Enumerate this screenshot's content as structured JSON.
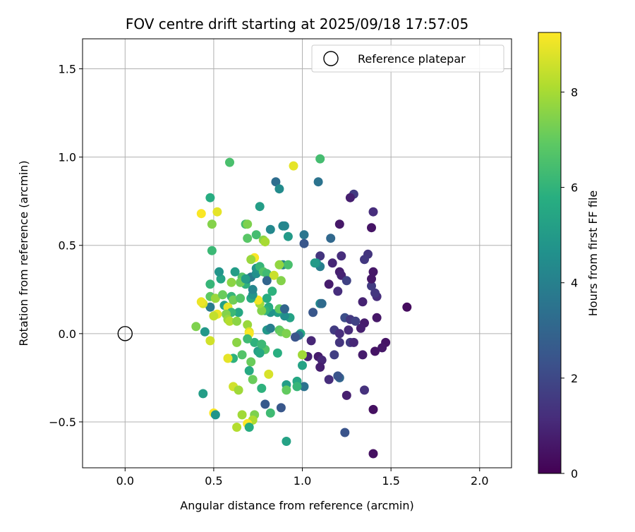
{
  "chart_data": {
    "type": "scatter",
    "title": "FOV centre drift starting at 2025/09/18 17:57:05",
    "xlabel": "Angular distance from reference (arcmin)",
    "ylabel": "Rotation from reference (arcmin)",
    "xlim": [
      -0.24,
      2.18
    ],
    "ylim": [
      -0.76,
      1.67
    ],
    "x_ticks": [
      0.0,
      0.5,
      1.0,
      1.5,
      2.0
    ],
    "x_tick_labels": [
      "0.0",
      "0.5",
      "1.0",
      "1.5",
      "2.0"
    ],
    "y_ticks": [
      -0.5,
      0.0,
      0.5,
      1.0,
      1.5
    ],
    "y_tick_labels": [
      "−0.5",
      "0.0",
      "0.5",
      "1.0",
      "1.5"
    ],
    "grid": true,
    "legend": {
      "position": "top-right",
      "entries": [
        "Reference platepar"
      ]
    },
    "colorbar": {
      "label": "Hours from first FF file",
      "colormap": "viridis",
      "range": [
        0,
        9.25
      ],
      "ticks": [
        0,
        2,
        4,
        6,
        8
      ],
      "tick_labels": [
        "0",
        "2",
        "4",
        "6",
        "8"
      ]
    },
    "reference_point": {
      "label": "Reference platepar",
      "x": 0.0,
      "y": 0.0
    },
    "points": [
      {
        "x": 1.59,
        "y": 0.15,
        "t": 0.3
      },
      {
        "x": 1.4,
        "y": -0.68,
        "t": 0.4
      },
      {
        "x": 1.4,
        "y": -0.43,
        "t": 0.4
      },
      {
        "x": 1.47,
        "y": -0.05,
        "t": 0.5
      },
      {
        "x": 1.45,
        "y": -0.08,
        "t": 0.6
      },
      {
        "x": 1.41,
        "y": -0.1,
        "t": 0.5
      },
      {
        "x": 1.42,
        "y": 0.09,
        "t": 0.6
      },
      {
        "x": 1.35,
        "y": 0.06,
        "t": 0.7
      },
      {
        "x": 1.33,
        "y": 0.03,
        "t": 0.8
      },
      {
        "x": 1.42,
        "y": 0.21,
        "t": 1.2
      },
      {
        "x": 1.41,
        "y": 0.23,
        "t": 1.5
      },
      {
        "x": 1.39,
        "y": 0.27,
        "t": 1.6
      },
      {
        "x": 1.39,
        "y": 0.31,
        "t": 0.6
      },
      {
        "x": 1.4,
        "y": 0.35,
        "t": 0.6
      },
      {
        "x": 1.37,
        "y": 0.45,
        "t": 1.4
      },
      {
        "x": 1.35,
        "y": 0.42,
        "t": 1.5
      },
      {
        "x": 1.39,
        "y": 0.6,
        "t": 0.5
      },
      {
        "x": 1.4,
        "y": 0.69,
        "t": 1.2
      },
      {
        "x": 1.29,
        "y": 0.79,
        "t": 1.6
      },
      {
        "x": 1.27,
        "y": 0.77,
        "t": 0.8
      },
      {
        "x": 1.21,
        "y": 0.62,
        "t": 0.6
      },
      {
        "x": 1.22,
        "y": 0.44,
        "t": 1.2
      },
      {
        "x": 1.17,
        "y": 0.4,
        "t": 1.0
      },
      {
        "x": 1.21,
        "y": 0.35,
        "t": 0.8
      },
      {
        "x": 1.22,
        "y": 0.33,
        "t": 0.9
      },
      {
        "x": 1.1,
        "y": 0.44,
        "t": 1.4
      },
      {
        "x": 1.15,
        "y": 0.28,
        "t": 0.7
      },
      {
        "x": 1.2,
        "y": 0.24,
        "t": 1.2
      },
      {
        "x": 1.25,
        "y": 0.3,
        "t": 1.8
      },
      {
        "x": 1.34,
        "y": 0.18,
        "t": 0.9
      },
      {
        "x": 1.24,
        "y": 0.09,
        "t": 2.2
      },
      {
        "x": 1.27,
        "y": 0.08,
        "t": 1.5
      },
      {
        "x": 1.3,
        "y": 0.07,
        "t": 1.8
      },
      {
        "x": 1.18,
        "y": 0.02,
        "t": 1.6
      },
      {
        "x": 1.21,
        "y": 0.0,
        "t": 1.2
      },
      {
        "x": 1.26,
        "y": 0.02,
        "t": 1.1
      },
      {
        "x": 1.21,
        "y": -0.05,
        "t": 1.4
      },
      {
        "x": 1.27,
        "y": -0.05,
        "t": 1.6
      },
      {
        "x": 1.29,
        "y": -0.05,
        "t": 1.0
      },
      {
        "x": 1.34,
        "y": -0.12,
        "t": 0.7
      },
      {
        "x": 1.18,
        "y": -0.12,
        "t": 1.7
      },
      {
        "x": 1.09,
        "y": -0.13,
        "t": 0.7
      },
      {
        "x": 1.11,
        "y": -0.15,
        "t": 1.0
      },
      {
        "x": 1.03,
        "y": -0.13,
        "t": 0.9
      },
      {
        "x": 1.05,
        "y": -0.04,
        "t": 1.0
      },
      {
        "x": 1.1,
        "y": -0.19,
        "t": 0.8
      },
      {
        "x": 1.15,
        "y": -0.26,
        "t": 1.2
      },
      {
        "x": 1.21,
        "y": -0.25,
        "t": 3.0
      },
      {
        "x": 1.2,
        "y": -0.24,
        "t": 2.4
      },
      {
        "x": 1.25,
        "y": -0.35,
        "t": 0.8
      },
      {
        "x": 1.35,
        "y": -0.32,
        "t": 1.3
      },
      {
        "x": 1.24,
        "y": -0.56,
        "t": 2.4
      },
      {
        "x": 1.01,
        "y": 0.51,
        "t": 2.5
      },
      {
        "x": 1.01,
        "y": 0.56,
        "t": 3.6
      },
      {
        "x": 1.16,
        "y": 0.54,
        "t": 3.1
      },
      {
        "x": 1.09,
        "y": 0.86,
        "t": 3.5
      },
      {
        "x": 1.1,
        "y": 0.38,
        "t": 3.9
      },
      {
        "x": 1.08,
        "y": 0.4,
        "t": 4.6
      },
      {
        "x": 1.07,
        "y": 0.4,
        "t": 5.0
      },
      {
        "x": 1.1,
        "y": 0.17,
        "t": 4.3
      },
      {
        "x": 1.11,
        "y": 0.17,
        "t": 3.2
      },
      {
        "x": 1.06,
        "y": 0.12,
        "t": 2.5
      },
      {
        "x": 0.99,
        "y": 0.0,
        "t": 5.5
      },
      {
        "x": 0.98,
        "y": -0.01,
        "t": 3.5
      },
      {
        "x": 0.96,
        "y": -0.02,
        "t": 2.4
      },
      {
        "x": 1.0,
        "y": -0.18,
        "t": 5.3
      },
      {
        "x": 0.97,
        "y": -0.27,
        "t": 5.5
      },
      {
        "x": 1.01,
        "y": -0.3,
        "t": 3.5
      },
      {
        "x": 0.97,
        "y": -0.3,
        "t": 6.1
      },
      {
        "x": 0.91,
        "y": -0.29,
        "t": 5.1
      },
      {
        "x": 0.91,
        "y": -0.32,
        "t": 7.0
      },
      {
        "x": 0.91,
        "y": -0.61,
        "t": 5.3
      },
      {
        "x": 0.88,
        "y": -0.42,
        "t": 2.5
      },
      {
        "x": 0.79,
        "y": -0.4,
        "t": 2.6
      },
      {
        "x": 0.82,
        "y": -0.45,
        "t": 6.3
      },
      {
        "x": 0.77,
        "y": -0.31,
        "t": 5.9
      },
      {
        "x": 0.81,
        "y": -0.23,
        "t": 8.7
      },
      {
        "x": 0.86,
        "y": -0.11,
        "t": 5.8
      },
      {
        "x": 0.79,
        "y": -0.09,
        "t": 6.7
      },
      {
        "x": 0.75,
        "y": -0.1,
        "t": 5.1
      },
      {
        "x": 0.76,
        "y": -0.11,
        "t": 5.5
      },
      {
        "x": 0.73,
        "y": -0.05,
        "t": 5.9
      },
      {
        "x": 0.77,
        "y": -0.06,
        "t": 6.2
      },
      {
        "x": 0.8,
        "y": 0.02,
        "t": 4.9
      },
      {
        "x": 0.82,
        "y": 0.03,
        "t": 3.9
      },
      {
        "x": 0.87,
        "y": 0.02,
        "t": 6.9
      },
      {
        "x": 0.88,
        "y": 0.01,
        "t": 7.1
      },
      {
        "x": 0.91,
        "y": 0.0,
        "t": 7.4
      },
      {
        "x": 0.93,
        "y": 0.09,
        "t": 5.3
      },
      {
        "x": 0.9,
        "y": 0.1,
        "t": 4.5
      },
      {
        "x": 0.86,
        "y": 0.12,
        "t": 5.2
      },
      {
        "x": 0.87,
        "y": 0.14,
        "t": 7.0
      },
      {
        "x": 0.9,
        "y": 0.14,
        "t": 3.0
      },
      {
        "x": 0.82,
        "y": 0.12,
        "t": 4.7
      },
      {
        "x": 0.81,
        "y": 0.15,
        "t": 5.7
      },
      {
        "x": 0.79,
        "y": 0.13,
        "t": 6.0
      },
      {
        "x": 0.77,
        "y": 0.13,
        "t": 7.5
      },
      {
        "x": 0.76,
        "y": 0.17,
        "t": 7.9
      },
      {
        "x": 0.8,
        "y": 0.2,
        "t": 5.7
      },
      {
        "x": 0.83,
        "y": 0.24,
        "t": 5.9
      },
      {
        "x": 0.75,
        "y": 0.19,
        "t": 9.1
      },
      {
        "x": 0.71,
        "y": 0.2,
        "t": 5.6
      },
      {
        "x": 0.72,
        "y": 0.22,
        "t": 4.8
      },
      {
        "x": 0.72,
        "y": 0.25,
        "t": 4.2
      },
      {
        "x": 0.68,
        "y": 0.28,
        "t": 5.9
      },
      {
        "x": 0.69,
        "y": 0.31,
        "t": 4.1
      },
      {
        "x": 0.71,
        "y": 0.32,
        "t": 3.8
      },
      {
        "x": 0.74,
        "y": 0.34,
        "t": 4.6
      },
      {
        "x": 0.74,
        "y": 0.37,
        "t": 4.8
      },
      {
        "x": 0.76,
        "y": 0.38,
        "t": 6.1
      },
      {
        "x": 0.78,
        "y": 0.35,
        "t": 6.7
      },
      {
        "x": 0.8,
        "y": 0.34,
        "t": 6.3
      },
      {
        "x": 0.84,
        "y": 0.33,
        "t": 8.5
      },
      {
        "x": 0.8,
        "y": 0.3,
        "t": 3.0
      },
      {
        "x": 0.88,
        "y": 0.3,
        "t": 7.5
      },
      {
        "x": 0.89,
        "y": 0.39,
        "t": 4.1
      },
      {
        "x": 0.92,
        "y": 0.39,
        "t": 6.5
      },
      {
        "x": 0.87,
        "y": 0.39,
        "t": 7.7
      },
      {
        "x": 0.73,
        "y": 0.43,
        "t": 9.2
      },
      {
        "x": 0.71,
        "y": 0.42,
        "t": 7.8
      },
      {
        "x": 0.66,
        "y": 0.32,
        "t": 6.7
      },
      {
        "x": 0.65,
        "y": 0.29,
        "t": 7.2
      },
      {
        "x": 0.68,
        "y": 0.31,
        "t": 5.1
      },
      {
        "x": 0.6,
        "y": 0.29,
        "t": 7.6
      },
      {
        "x": 0.62,
        "y": 0.35,
        "t": 5.1
      },
      {
        "x": 0.54,
        "y": 0.31,
        "t": 5.4
      },
      {
        "x": 0.53,
        "y": 0.35,
        "t": 4.8
      },
      {
        "x": 0.48,
        "y": 0.28,
        "t": 6.1
      },
      {
        "x": 0.48,
        "y": 0.21,
        "t": 6.9
      },
      {
        "x": 0.51,
        "y": 0.2,
        "t": 7.8
      },
      {
        "x": 0.55,
        "y": 0.22,
        "t": 7.1
      },
      {
        "x": 0.56,
        "y": 0.16,
        "t": 5.2
      },
      {
        "x": 0.58,
        "y": 0.15,
        "t": 8.9
      },
      {
        "x": 0.6,
        "y": 0.21,
        "t": 6.1
      },
      {
        "x": 0.61,
        "y": 0.19,
        "t": 7.2
      },
      {
        "x": 0.65,
        "y": 0.2,
        "t": 6.7
      },
      {
        "x": 0.64,
        "y": 0.12,
        "t": 5.5
      },
      {
        "x": 0.6,
        "y": 0.12,
        "t": 6.2
      },
      {
        "x": 0.57,
        "y": 0.11,
        "t": 7.5
      },
      {
        "x": 0.52,
        "y": 0.11,
        "t": 9.0
      },
      {
        "x": 0.5,
        "y": 0.1,
        "t": 8.4
      },
      {
        "x": 0.48,
        "y": 0.15,
        "t": 3.8
      },
      {
        "x": 0.44,
        "y": 0.17,
        "t": 8.7
      },
      {
        "x": 0.43,
        "y": 0.18,
        "t": 9.0
      },
      {
        "x": 0.4,
        "y": 0.04,
        "t": 7.4
      },
      {
        "x": 0.45,
        "y": 0.01,
        "t": 4.9
      },
      {
        "x": 0.48,
        "y": -0.04,
        "t": 8.6
      },
      {
        "x": 0.58,
        "y": 0.08,
        "t": 7.8
      },
      {
        "x": 0.59,
        "y": 0.07,
        "t": 8.2
      },
      {
        "x": 0.63,
        "y": 0.07,
        "t": 7.6
      },
      {
        "x": 0.69,
        "y": 0.05,
        "t": 7.8
      },
      {
        "x": 0.7,
        "y": 0.01,
        "t": 8.7
      },
      {
        "x": 0.7,
        "y": 0.0,
        "t": 9.2
      },
      {
        "x": 0.69,
        "y": -0.03,
        "t": 6.3
      },
      {
        "x": 0.63,
        "y": -0.05,
        "t": 7.6
      },
      {
        "x": 0.66,
        "y": -0.12,
        "t": 6.7
      },
      {
        "x": 0.61,
        "y": -0.14,
        "t": 5.9
      },
      {
        "x": 0.58,
        "y": -0.14,
        "t": 8.9
      },
      {
        "x": 0.71,
        "y": -0.16,
        "t": 7.1
      },
      {
        "x": 0.7,
        "y": -0.21,
        "t": 5.6
      },
      {
        "x": 0.72,
        "y": -0.26,
        "t": 7.1
      },
      {
        "x": 0.61,
        "y": -0.3,
        "t": 8.6
      },
      {
        "x": 0.64,
        "y": -0.32,
        "t": 7.9
      },
      {
        "x": 0.44,
        "y": -0.34,
        "t": 5.1
      },
      {
        "x": 0.5,
        "y": -0.45,
        "t": 9.2
      },
      {
        "x": 0.51,
        "y": -0.46,
        "t": 4.8
      },
      {
        "x": 0.66,
        "y": -0.46,
        "t": 7.9
      },
      {
        "x": 0.73,
        "y": -0.46,
        "t": 7.4
      },
      {
        "x": 0.72,
        "y": -0.49,
        "t": 8.1
      },
      {
        "x": 0.69,
        "y": -0.51,
        "t": 9.2
      },
      {
        "x": 0.7,
        "y": -0.53,
        "t": 5.7
      },
      {
        "x": 0.63,
        "y": -0.53,
        "t": 8.2
      },
      {
        "x": 0.49,
        "y": 0.47,
        "t": 6.2
      },
      {
        "x": 0.49,
        "y": 0.62,
        "t": 7.5
      },
      {
        "x": 0.43,
        "y": 0.68,
        "t": 9.2
      },
      {
        "x": 0.52,
        "y": 0.69,
        "t": 8.9
      },
      {
        "x": 0.48,
        "y": 0.77,
        "t": 5.7
      },
      {
        "x": 0.59,
        "y": 0.97,
        "t": 6.5
      },
      {
        "x": 0.68,
        "y": 0.62,
        "t": 6.4
      },
      {
        "x": 0.69,
        "y": 0.62,
        "t": 7.4
      },
      {
        "x": 0.69,
        "y": 0.54,
        "t": 6.8
      },
      {
        "x": 0.74,
        "y": 0.56,
        "t": 6.4
      },
      {
        "x": 0.76,
        "y": 0.72,
        "t": 5.1
      },
      {
        "x": 0.78,
        "y": 0.53,
        "t": 7.6
      },
      {
        "x": 0.79,
        "y": 0.52,
        "t": 8.0
      },
      {
        "x": 0.82,
        "y": 0.59,
        "t": 4.3
      },
      {
        "x": 0.85,
        "y": 0.86,
        "t": 3.3
      },
      {
        "x": 0.87,
        "y": 0.82,
        "t": 4.4
      },
      {
        "x": 0.89,
        "y": 0.61,
        "t": 4.3
      },
      {
        "x": 0.9,
        "y": 0.61,
        "t": 4.2
      },
      {
        "x": 0.92,
        "y": 0.55,
        "t": 5.0
      },
      {
        "x": 0.95,
        "y": 0.95,
        "t": 8.9
      },
      {
        "x": 1.1,
        "y": 0.99,
        "t": 6.4
      },
      {
        "x": 1.0,
        "y": -0.12,
        "t": 7.9
      }
    ]
  }
}
